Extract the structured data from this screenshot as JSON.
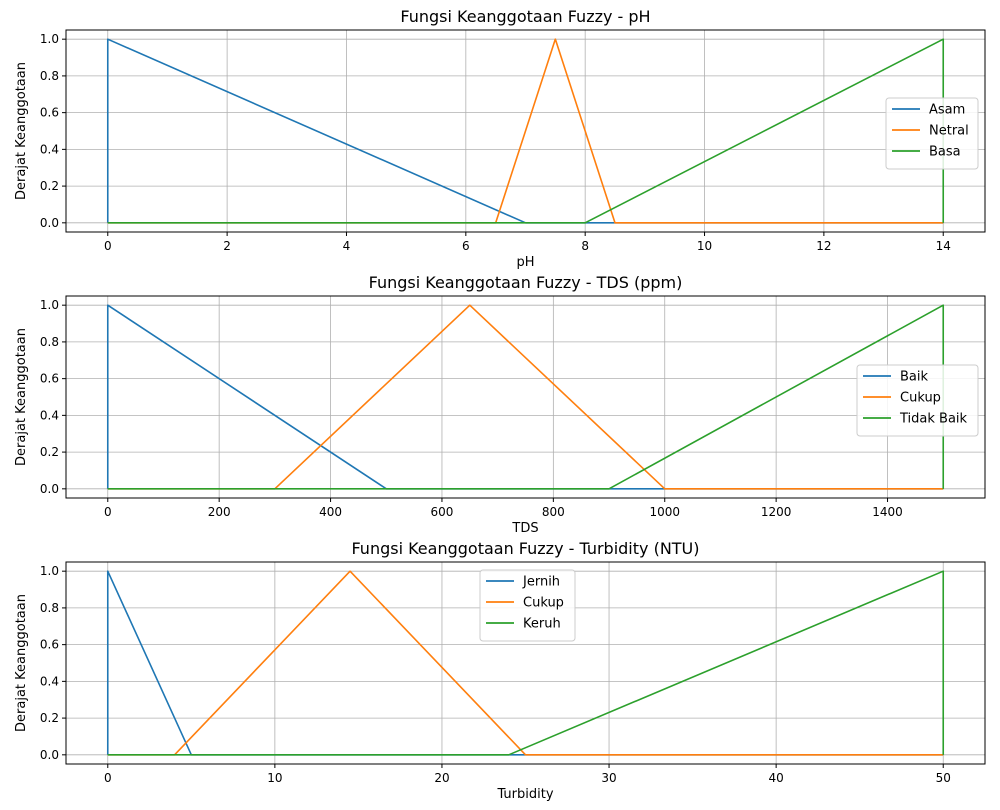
{
  "chart_data": [
    {
      "type": "line",
      "title": "Fungsi Keanggotaan Fuzzy - pH",
      "xlabel": "pH",
      "ylabel": "Derajat Keanggotaan",
      "xlim": [
        -0.7,
        14.7
      ],
      "ylim": [
        -0.05,
        1.05
      ],
      "xticks": [
        0,
        2,
        4,
        6,
        8,
        10,
        12,
        14
      ],
      "yticks": [
        0.0,
        0.2,
        0.4,
        0.6,
        0.8,
        1.0
      ],
      "grid": true,
      "legend": "center-right",
      "series": [
        {
          "name": "Asam",
          "color": "#1f77b4",
          "x": [
            0,
            0,
            7,
            14,
            14
          ],
          "y": [
            0,
            1,
            0,
            0,
            0
          ]
        },
        {
          "name": "Netral",
          "color": "#ff7f0e",
          "x": [
            0,
            6.5,
            7.5,
            8.5,
            14,
            14
          ],
          "y": [
            0,
            0,
            1,
            0,
            0,
            0
          ]
        },
        {
          "name": "Basa",
          "color": "#2ca02c",
          "x": [
            0,
            8,
            14,
            14
          ],
          "y": [
            0,
            0,
            1,
            0
          ]
        }
      ]
    },
    {
      "type": "line",
      "title": "Fungsi Keanggotaan Fuzzy - TDS (ppm)",
      "xlabel": "TDS",
      "ylabel": "Derajat Keanggotaan",
      "xlim": [
        -75,
        1575
      ],
      "ylim": [
        -0.05,
        1.05
      ],
      "xticks": [
        0,
        200,
        400,
        600,
        800,
        1000,
        1200,
        1400
      ],
      "yticks": [
        0.0,
        0.2,
        0.4,
        0.6,
        0.8,
        1.0
      ],
      "grid": true,
      "legend": "center-right",
      "series": [
        {
          "name": "Baik",
          "color": "#1f77b4",
          "x": [
            0,
            0,
            500,
            1500,
            1500
          ],
          "y": [
            0,
            1,
            0,
            0,
            0
          ]
        },
        {
          "name": "Cukup",
          "color": "#ff7f0e",
          "x": [
            0,
            300,
            650,
            1000,
            1500,
            1500
          ],
          "y": [
            0,
            0,
            1,
            0,
            0,
            0
          ]
        },
        {
          "name": "Tidak Baik",
          "color": "#2ca02c",
          "x": [
            0,
            900,
            1500,
            1500
          ],
          "y": [
            0,
            0,
            1,
            0
          ]
        }
      ]
    },
    {
      "type": "line",
      "title": "Fungsi Keanggotaan Fuzzy - Turbidity (NTU)",
      "xlabel": "Turbidity",
      "ylabel": "Derajat Keanggotaan",
      "xlim": [
        -2.5,
        52.5
      ],
      "ylim": [
        -0.05,
        1.05
      ],
      "xticks": [
        0,
        10,
        20,
        30,
        40,
        50
      ],
      "yticks": [
        0.0,
        0.2,
        0.4,
        0.6,
        0.8,
        1.0
      ],
      "grid": true,
      "legend": "upper-center",
      "series": [
        {
          "name": "Jernih",
          "color": "#1f77b4",
          "x": [
            0,
            0,
            5,
            50,
            50
          ],
          "y": [
            0,
            1,
            0,
            0,
            0
          ]
        },
        {
          "name": "Cukup",
          "color": "#ff7f0e",
          "x": [
            0,
            4,
            14.5,
            25,
            50,
            50
          ],
          "y": [
            0,
            0,
            1,
            0,
            0,
            0
          ]
        },
        {
          "name": "Keruh",
          "color": "#2ca02c",
          "x": [
            0,
            24,
            50,
            50
          ],
          "y": [
            0,
            0,
            1,
            0
          ]
        }
      ]
    }
  ]
}
